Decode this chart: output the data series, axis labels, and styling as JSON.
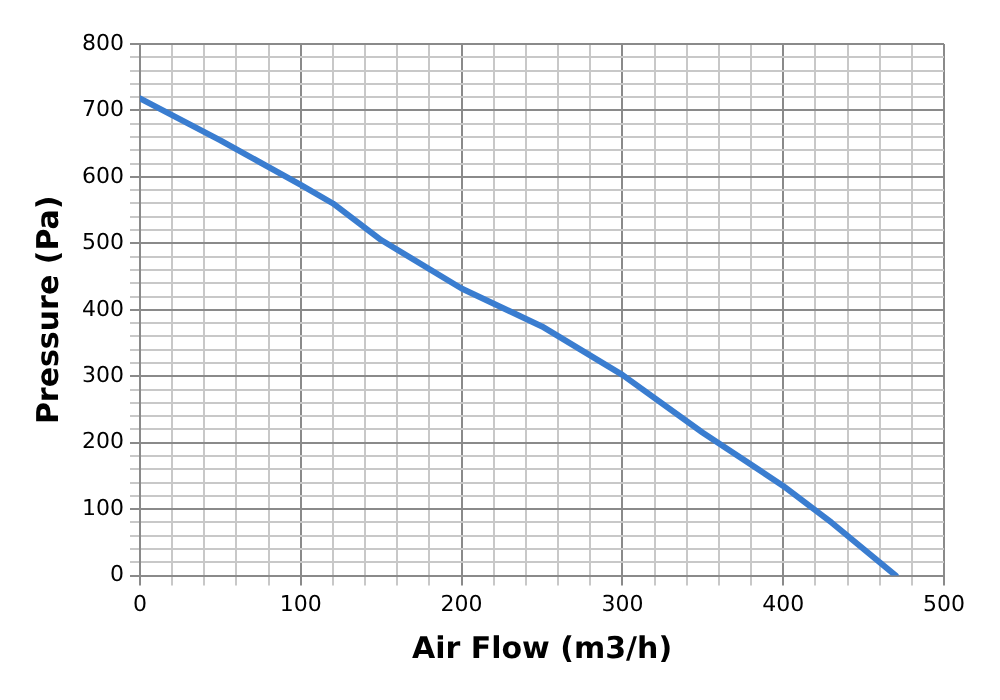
{
  "chart_data": {
    "type": "line",
    "xlabel": "Air Flow (m3/h)",
    "ylabel": "Pressure (Pa)",
    "x": [
      0,
      50,
      100,
      120,
      150,
      200,
      250,
      300,
      350,
      400,
      430,
      470
    ],
    "series": [
      {
        "color": "#3a7dd0",
        "values": [
          718,
          655,
          588,
          560,
          505,
          432,
          375,
          302,
          215,
          135,
          80,
          0
        ]
      }
    ],
    "xlim": [
      0,
      500
    ],
    "ylim": [
      0,
      800
    ],
    "xticks": [
      0,
      {
        "value": 20,
        "label": null
      },
      {
        "value": 40,
        "label": null
      },
      {
        "value": 60,
        "label": null
      },
      {
        "value": 80,
        "label": null
      },
      100,
      {
        "value": 120,
        "label": null
      },
      {
        "value": 140,
        "label": null
      },
      {
        "value": 160,
        "label": null
      },
      {
        "value": 180,
        "label": null
      },
      200,
      {
        "value": 220,
        "label": null
      },
      {
        "value": 240,
        "label": null
      },
      {
        "value": 260,
        "label": null
      },
      {
        "value": 280,
        "label": null
      },
      300,
      {
        "value": 320,
        "label": null
      },
      {
        "value": 340,
        "label": null
      },
      {
        "value": 360,
        "label": null
      },
      {
        "value": 380,
        "label": null
      },
      400,
      {
        "value": 420,
        "label": null
      },
      {
        "value": 440,
        "label": null
      },
      {
        "value": 460,
        "label": null
      },
      {
        "value": 480,
        "label": null
      },
      500
    ],
    "yticks": [
      0,
      {
        "value": 20,
        "label": null
      },
      {
        "value": 40,
        "label": null
      },
      {
        "value": 60,
        "label": null
      },
      {
        "value": 80,
        "label": null
      },
      100,
      {
        "value": 120,
        "label": null
      },
      {
        "value": 140,
        "label": null
      },
      {
        "value": 160,
        "label": null
      },
      {
        "value": 180,
        "label": null
      },
      200,
      {
        "value": 220,
        "label": null
      },
      {
        "value": 240,
        "label": null
      },
      {
        "value": 260,
        "label": null
      },
      {
        "value": 280,
        "label": null
      },
      300,
      {
        "value": 320,
        "label": null
      },
      {
        "value": 340,
        "label": null
      },
      {
        "value": 360,
        "label": null
      },
      {
        "value": 380,
        "label": null
      },
      400,
      {
        "value": 420,
        "label": null
      },
      {
        "value": 440,
        "label": null
      },
      {
        "value": 460,
        "label": null
      },
      {
        "value": 480,
        "label": null
      },
      500,
      {
        "value": 520,
        "label": null
      },
      {
        "value": 540,
        "label": null
      },
      {
        "value": 560,
        "label": null
      },
      {
        "value": 580,
        "label": null
      },
      600,
      {
        "value": 620,
        "label": null
      },
      {
        "value": 640,
        "label": null
      },
      {
        "value": 660,
        "label": null
      },
      {
        "value": 680,
        "label": null
      },
      700,
      {
        "value": 720,
        "label": null
      },
      {
        "value": 740,
        "label": null
      },
      {
        "value": 760,
        "label": null
      },
      {
        "value": 780,
        "label": null
      },
      800
    ],
    "grid": true,
    "marker": "none",
    "line_style": "solid"
  }
}
